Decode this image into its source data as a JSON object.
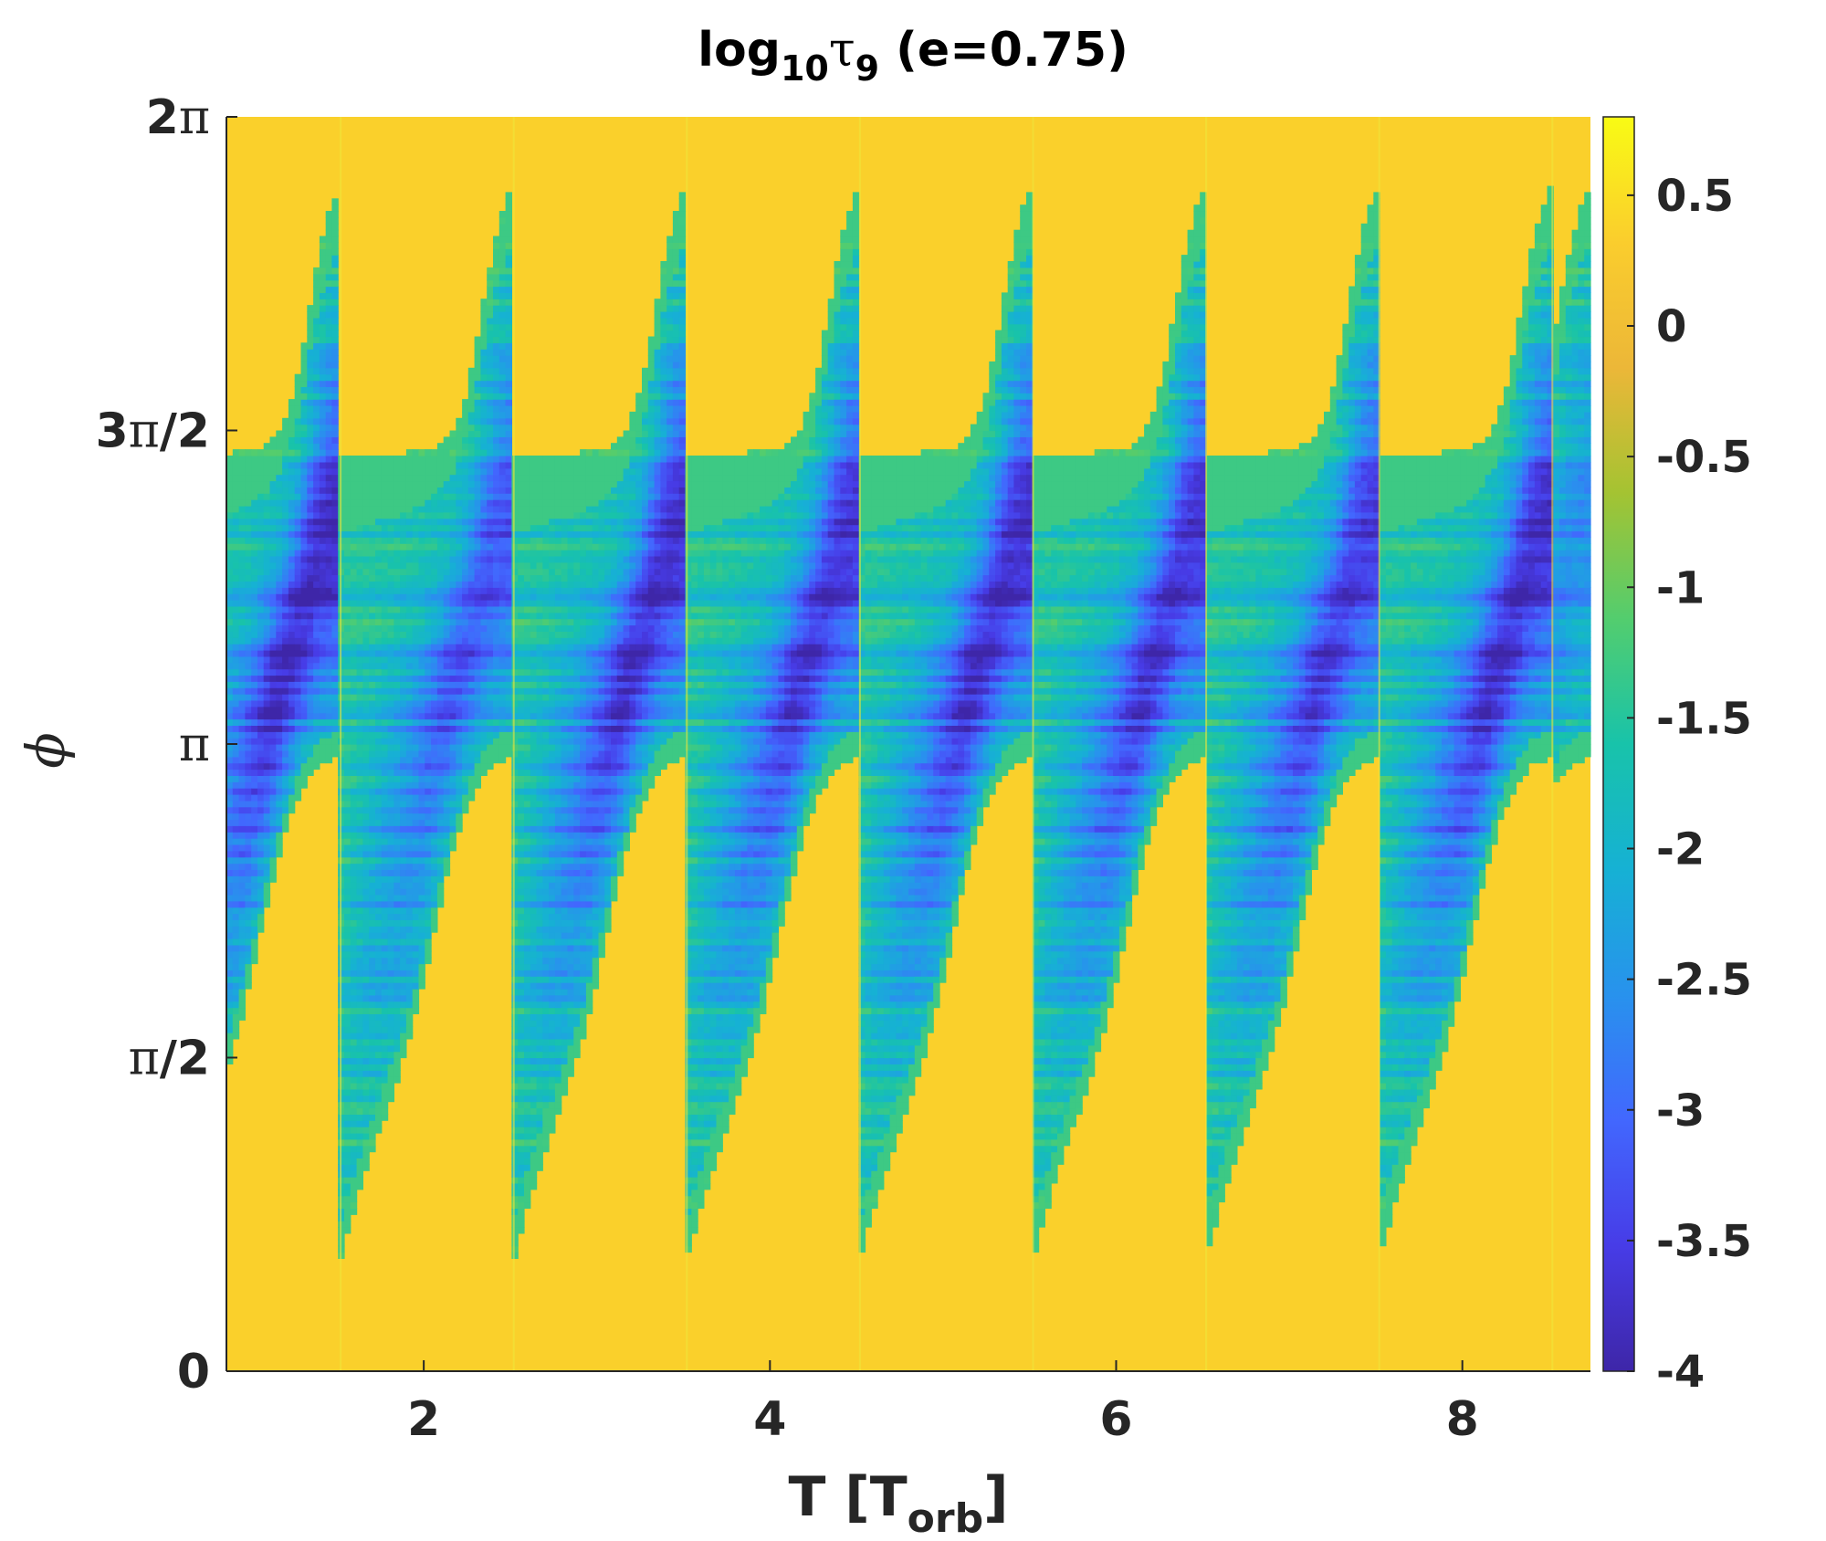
{
  "chart_data": {
    "type": "heatmap",
    "title": {
      "prefix": "log",
      "sub": "10",
      "symbol": "τ",
      "symbol_sub": "9",
      "suffix": " (e=0.75)"
    },
    "xlabel": {
      "main": "T [T",
      "sub": "orb",
      "end": "]"
    },
    "ylabel": "ϕ",
    "xlim": [
      0.86,
      8.74
    ],
    "ylim": [
      0,
      6.2832
    ],
    "xticks": [
      {
        "value": 2,
        "label": "2"
      },
      {
        "value": 4,
        "label": "4"
      },
      {
        "value": 6,
        "label": "6"
      },
      {
        "value": 8,
        "label": "8"
      }
    ],
    "yticks": [
      {
        "value": 0,
        "num": "0",
        "sym": "",
        "den": ""
      },
      {
        "value": 1.5708,
        "num": "",
        "sym": "π",
        "den": "/2"
      },
      {
        "value": 3.1416,
        "num": "",
        "sym": "π",
        "den": ""
      },
      {
        "value": 4.7124,
        "num": "3",
        "sym": "π",
        "den": "/2"
      },
      {
        "value": 6.2832,
        "num": "2",
        "sym": "π",
        "den": ""
      }
    ],
    "colorbar": {
      "range": [
        -4,
        0.8
      ],
      "colormap": "parula",
      "ticks": [
        {
          "value": 0.5,
          "label": "0.5"
        },
        {
          "value": 0,
          "label": "0"
        },
        {
          "value": -0.5,
          "label": "-0.5"
        },
        {
          "value": -1,
          "label": "-1"
        },
        {
          "value": -1.5,
          "label": "-1.5"
        },
        {
          "value": -2,
          "label": "-2"
        },
        {
          "value": -2.5,
          "label": "-2.5"
        },
        {
          "value": -3,
          "label": "-3"
        },
        {
          "value": -3.5,
          "label": "-3.5"
        },
        {
          "value": -4,
          "label": "-4"
        }
      ]
    },
    "background_value": 0.35,
    "period_T_orb": 1,
    "bands": [
      {
        "x_start": 0.86,
        "x_end": 1.52,
        "phi_low": 2.7,
        "phi_high": 4.8,
        "min_value": -3.9
      },
      {
        "x_start": 1.52,
        "x_end": 2.52,
        "phi_low": 2.7,
        "phi_high": 4.8,
        "min_value": -3.3
      },
      {
        "x_start": 2.52,
        "x_end": 3.52,
        "phi_low": 2.7,
        "phi_high": 4.8,
        "min_value": -3.8
      },
      {
        "x_start": 3.52,
        "x_end": 4.52,
        "phi_low": 2.7,
        "phi_high": 4.8,
        "min_value": -3.7
      },
      {
        "x_start": 4.52,
        "x_end": 5.52,
        "phi_low": 2.7,
        "phi_high": 4.8,
        "min_value": -3.8
      },
      {
        "x_start": 5.52,
        "x_end": 6.52,
        "phi_low": 2.7,
        "phi_high": 4.8,
        "min_value": -3.7
      },
      {
        "x_start": 6.52,
        "x_end": 7.52,
        "phi_low": 2.7,
        "phi_high": 4.8,
        "min_value": -3.6
      },
      {
        "x_start": 7.52,
        "x_end": 8.52,
        "phi_low": 2.7,
        "phi_high": 4.8,
        "min_value": -3.8
      },
      {
        "x_start": 8.52,
        "x_end": 8.74,
        "phi_low": 2.7,
        "phi_high": 4.8,
        "min_value": -2.6
      }
    ],
    "colors": {
      "background": "#fbd12e",
      "deep": "#3e26a8",
      "edge_line": "#f0e63a"
    }
  }
}
